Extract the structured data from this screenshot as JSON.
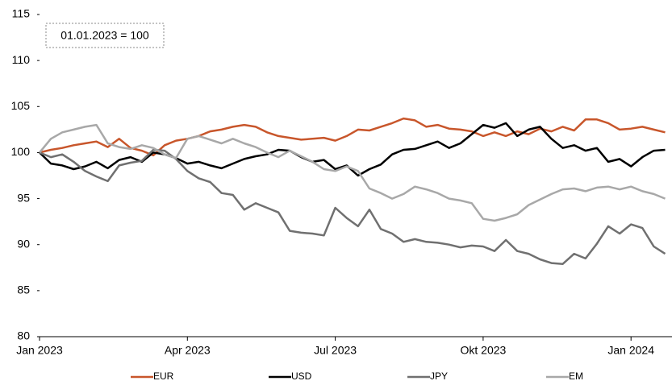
{
  "chart_data": {
    "type": "line",
    "annotation": "01.01.2023 = 100",
    "categories": [
      "Jan 2023",
      null,
      null,
      null,
      null,
      null,
      null,
      null,
      null,
      null,
      null,
      null,
      null,
      "Apr 2023",
      null,
      null,
      null,
      null,
      null,
      null,
      null,
      null,
      null,
      null,
      null,
      null,
      "Jul 2023",
      null,
      null,
      null,
      null,
      null,
      null,
      null,
      null,
      null,
      null,
      null,
      null,
      "Okt 2023",
      null,
      null,
      null,
      null,
      null,
      null,
      null,
      null,
      null,
      null,
      null,
      null,
      "Jan 2024",
      null,
      null,
      null
    ],
    "series": [
      {
        "name": "EUR",
        "color": "#c8562b",
        "values": [
          100,
          100.3,
          100.5,
          100.8,
          101,
          101.2,
          100.6,
          101.5,
          100.5,
          100.2,
          99.7,
          100.8,
          101.3,
          101.5,
          101.8,
          102.3,
          102.5,
          102.8,
          103,
          102.8,
          102.2,
          101.8,
          101.6,
          101.4,
          101.5,
          101.6,
          101.3,
          101.8,
          102.5,
          102.4,
          102.8,
          103.2,
          103.7,
          103.5,
          102.8,
          103.0,
          102.6,
          102.5,
          102.3,
          101.8,
          102.2,
          101.8,
          102.3,
          102.0,
          102.6,
          102.3,
          102.8,
          102.4,
          103.6,
          103.6,
          103.2,
          102.5,
          102.6,
          102.8,
          102.5,
          102.2
        ]
      },
      {
        "name": "USD",
        "color": "#000000",
        "values": [
          100,
          98.8,
          98.6,
          98.2,
          98.5,
          99.0,
          98.3,
          99.2,
          99.5,
          99.0,
          100.0,
          99.8,
          99.4,
          98.8,
          99.0,
          98.6,
          98.3,
          98.8,
          99.3,
          99.6,
          99.8,
          100.3,
          100.2,
          99.5,
          99.0,
          99.2,
          98.2,
          98.6,
          97.5,
          98.2,
          98.7,
          99.8,
          100.3,
          100.4,
          100.8,
          101.2,
          100.5,
          101.0,
          102.0,
          103.0,
          102.7,
          103.2,
          101.8,
          102.5,
          102.8,
          101.5,
          100.5,
          100.8,
          100.2,
          100.5,
          99.0,
          99.3,
          98.5,
          99.5,
          100.2,
          100.3
        ]
      },
      {
        "name": "JPY",
        "color": "#707070",
        "values": [
          100,
          99.5,
          99.8,
          99.0,
          98.0,
          97.4,
          96.9,
          98.6,
          98.9,
          99.1,
          100.3,
          100.2,
          99.3,
          98.0,
          97.2,
          96.8,
          95.6,
          95.4,
          93.8,
          94.5,
          94.0,
          93.5,
          91.5,
          91.3,
          91.2,
          91.0,
          94.0,
          92.9,
          92.0,
          93.8,
          91.7,
          91.2,
          90.3,
          90.6,
          90.3,
          90.2,
          90.0,
          89.7,
          89.9,
          89.8,
          89.3,
          90.5,
          89.3,
          89.0,
          88.4,
          88.0,
          87.9,
          89.0,
          88.5,
          90.1,
          92.0,
          91.2,
          92.2,
          91.8,
          89.8,
          89.0
        ]
      },
      {
        "name": "EM",
        "color": "#a8a8a8",
        "values": [
          100,
          101.5,
          102.2,
          102.5,
          102.8,
          103.0,
          101.0,
          100.6,
          100.4,
          100.8,
          100.5,
          99.8,
          99.4,
          101.5,
          101.8,
          101.4,
          101.0,
          101.5,
          101.0,
          100.6,
          100.0,
          99.5,
          100.2,
          99.6,
          99.0,
          98.2,
          98.0,
          98.5,
          98.0,
          96.1,
          95.6,
          95.0,
          95.5,
          96.3,
          96.0,
          95.6,
          95.0,
          94.8,
          94.5,
          92.8,
          92.6,
          92.9,
          93.3,
          94.3,
          94.9,
          95.5,
          96.0,
          96.1,
          95.8,
          96.2,
          96.3,
          96.0,
          96.3,
          95.8,
          95.5,
          95.0
        ]
      }
    ],
    "ylim": [
      80,
      115
    ],
    "yticks": [
      80,
      85,
      90,
      95,
      100,
      105,
      110,
      115
    ],
    "legend": "bottom"
  }
}
